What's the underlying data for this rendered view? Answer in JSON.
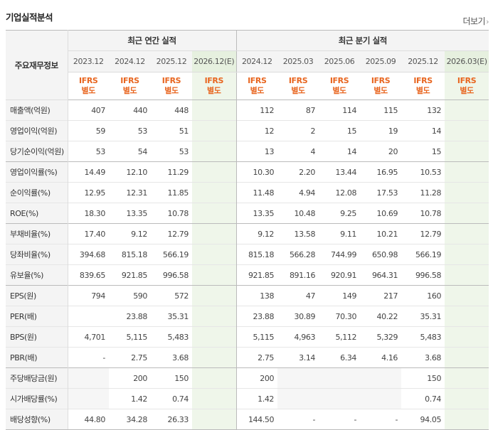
{
  "title": "기업실적분석",
  "more_label": "더보기",
  "header": {
    "label": "주요재무정보",
    "annual_label": "최근 연간 실적",
    "quarter_label": "최근 분기 실적",
    "annual_periods": [
      "2023.12",
      "2024.12",
      "2025.12",
      "2026.12(E)"
    ],
    "quarter_periods": [
      "2024.12",
      "2025.03",
      "2025.06",
      "2025.09",
      "2025.12",
      "2026.03(E)"
    ],
    "ifrs_line1": "IFRS",
    "ifrs_line2": "별도"
  },
  "rows": [
    {
      "label": "매출액(억원)",
      "annual": [
        "407",
        "440",
        "448",
        ""
      ],
      "quarter": [
        "112",
        "87",
        "114",
        "115",
        "132",
        ""
      ]
    },
    {
      "label": "영업이익(억원)",
      "annual": [
        "59",
        "53",
        "51",
        ""
      ],
      "quarter": [
        "12",
        "2",
        "15",
        "19",
        "14",
        ""
      ]
    },
    {
      "label": "당기순이익(억원)",
      "annual": [
        "53",
        "54",
        "53",
        ""
      ],
      "quarter": [
        "13",
        "4",
        "14",
        "20",
        "15",
        ""
      ]
    },
    {
      "label": "영업이익률(%)",
      "annual": [
        "14.49",
        "12.10",
        "11.29",
        ""
      ],
      "quarter": [
        "10.30",
        "2.20",
        "13.44",
        "16.95",
        "10.53",
        ""
      ]
    },
    {
      "label": "순이익률(%)",
      "annual": [
        "12.95",
        "12.31",
        "11.85",
        ""
      ],
      "quarter": [
        "11.48",
        "4.94",
        "12.08",
        "17.53",
        "11.28",
        ""
      ]
    },
    {
      "label": "ROE(%)",
      "annual": [
        "18.30",
        "13.35",
        "10.78",
        ""
      ],
      "quarter": [
        "13.35",
        "10.48",
        "9.25",
        "10.69",
        "10.78",
        ""
      ]
    },
    {
      "label": "부채비율(%)",
      "annual": [
        "17.40",
        "9.12",
        "12.79",
        ""
      ],
      "quarter": [
        "9.12",
        "13.58",
        "9.11",
        "10.21",
        "12.79",
        ""
      ]
    },
    {
      "label": "당좌비율(%)",
      "annual": [
        "394.68",
        "815.18",
        "566.19",
        ""
      ],
      "quarter": [
        "815.18",
        "566.28",
        "744.99",
        "650.98",
        "566.19",
        ""
      ]
    },
    {
      "label": "유보율(%)",
      "annual": [
        "839.65",
        "921.85",
        "996.58",
        ""
      ],
      "quarter": [
        "921.85",
        "891.16",
        "920.91",
        "964.31",
        "996.58",
        ""
      ]
    },
    {
      "label": "EPS(원)",
      "annual": [
        "794",
        "590",
        "572",
        ""
      ],
      "quarter": [
        "138",
        "47",
        "149",
        "217",
        "160",
        ""
      ]
    },
    {
      "label": "PER(배)",
      "annual": [
        "",
        "23.88",
        "35.31",
        ""
      ],
      "quarter": [
        "23.88",
        "30.89",
        "70.30",
        "40.22",
        "35.31",
        ""
      ]
    },
    {
      "label": "BPS(원)",
      "annual": [
        "4,701",
        "5,115",
        "5,483",
        ""
      ],
      "quarter": [
        "5,115",
        "4,963",
        "5,112",
        "5,329",
        "5,483",
        ""
      ]
    },
    {
      "label": "PBR(배)",
      "annual": [
        "-",
        "2.75",
        "3.68",
        ""
      ],
      "quarter": [
        "2.75",
        "3.14",
        "6.34",
        "4.16",
        "3.68",
        ""
      ]
    },
    {
      "label": "주당배당금(원)",
      "annual": [
        "",
        "200",
        "150",
        ""
      ],
      "quarter": [
        "200",
        "",
        "",
        "",
        "150",
        ""
      ]
    },
    {
      "label": "시가배당률(%)",
      "annual": [
        "",
        "1.42",
        "0.74",
        ""
      ],
      "quarter": [
        "1.42",
        "",
        "",
        "",
        "0.74",
        ""
      ]
    },
    {
      "label": "배당성향(%)",
      "annual": [
        "44.80",
        "34.28",
        "26.33",
        ""
      ],
      "quarter": [
        "144.50",
        "-",
        "-",
        "-",
        "94.05",
        ""
      ]
    }
  ]
}
